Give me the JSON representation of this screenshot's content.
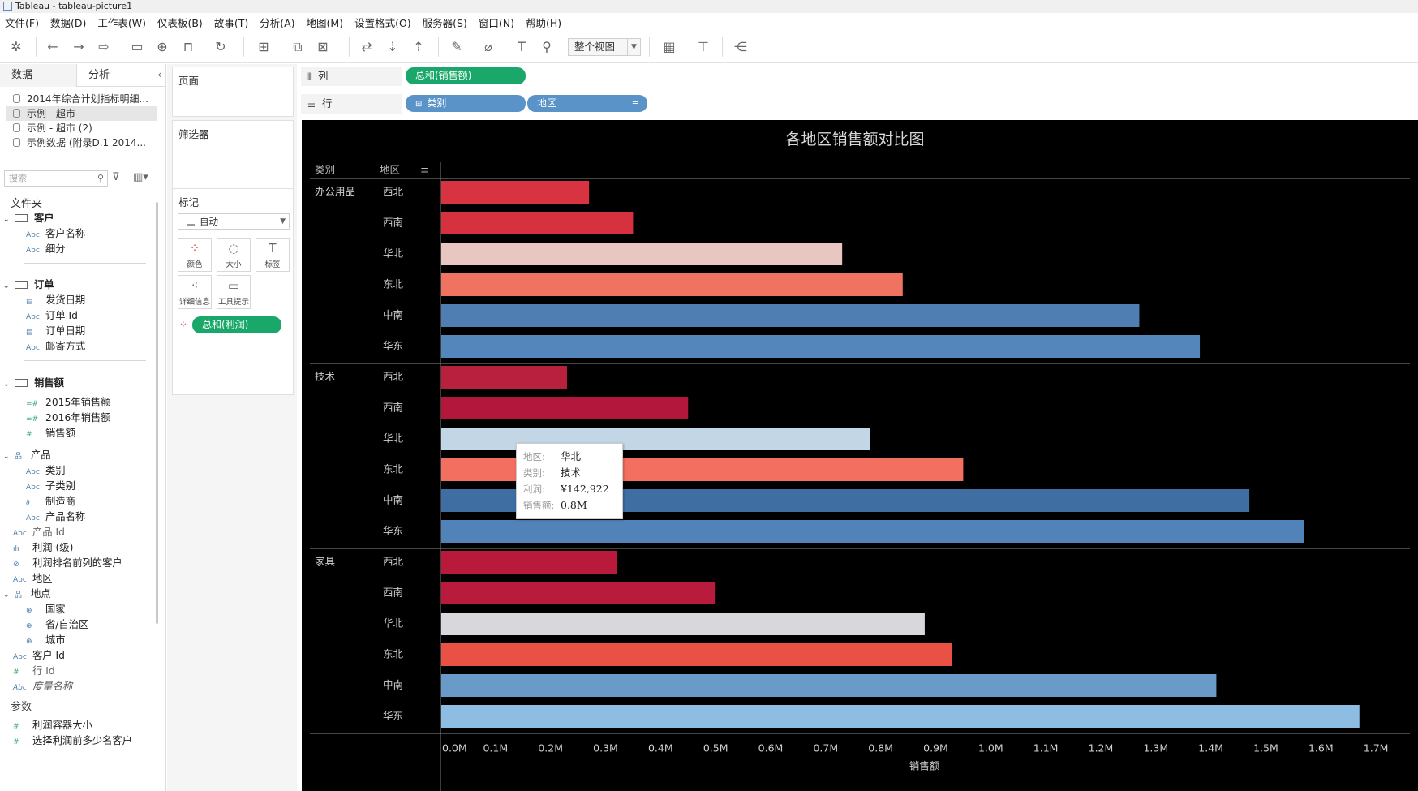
{
  "window": {
    "title": "Tableau - tableau-picture1"
  },
  "menu": [
    "文件(F)",
    "数据(D)",
    "工作表(W)",
    "仪表板(B)",
    "故事(T)",
    "分析(A)",
    "地图(M)",
    "设置格式(O)",
    "服务器(S)",
    "窗口(N)",
    "帮助(H)"
  ],
  "toolbar": {
    "view_mode": "整个视图"
  },
  "left_panel": {
    "tabs": [
      "数据",
      "分析"
    ],
    "datasources": [
      "2014年综合计划指标明细...",
      "示例 - 超市",
      "示例 - 超市 (2)",
      "示例数据 (附录D.1 2014..."
    ],
    "selected_datasource_index": 1,
    "search_placeholder": "搜索",
    "folders_label": "文件夹",
    "tree": [
      {
        "label": "客户",
        "kind": "folder"
      },
      {
        "label": "客户名称",
        "kind": "abc"
      },
      {
        "label": "细分",
        "kind": "abc"
      },
      {
        "label": "订单",
        "kind": "folder"
      },
      {
        "label": "发货日期",
        "kind": "date"
      },
      {
        "label": "订单 Id",
        "kind": "abc"
      },
      {
        "label": "订单日期",
        "kind": "date"
      },
      {
        "label": "邮寄方式",
        "kind": "abc"
      },
      {
        "label": "销售额",
        "kind": "folder"
      },
      {
        "label": "2015年销售额",
        "kind": "calc"
      },
      {
        "label": "2016年销售额",
        "kind": "calc"
      },
      {
        "label": "销售额",
        "kind": "number"
      },
      {
        "label": "产品",
        "kind": "hierarchy"
      },
      {
        "label": "类别",
        "kind": "abc"
      },
      {
        "label": "子类别",
        "kind": "abc"
      },
      {
        "label": "制造商",
        "kind": "link"
      },
      {
        "label": "产品名称",
        "kind": "abc"
      },
      {
        "label": "产品 Id",
        "kind": "abc"
      },
      {
        "label": "利润 (级)",
        "kind": "bin"
      },
      {
        "label": "利润排名前列的客户",
        "kind": "set"
      },
      {
        "label": "地区",
        "kind": "abc"
      },
      {
        "label": "地点",
        "kind": "hierarchy"
      },
      {
        "label": "国家",
        "kind": "geo"
      },
      {
        "label": "省/自治区",
        "kind": "geo"
      },
      {
        "label": "城市",
        "kind": "geo"
      },
      {
        "label": "客户 Id",
        "kind": "abc"
      },
      {
        "label": "行 Id",
        "kind": "number"
      },
      {
        "label": "度量名称",
        "kind": "abc"
      }
    ],
    "params_label": "参数",
    "params": [
      "利润容器大小",
      "选择利润前多少名客户"
    ]
  },
  "cards": {
    "pages": "页面",
    "filters": "筛选器",
    "marks": "标记",
    "marks_type": "自动",
    "mark_buttons": [
      "颜色",
      "大小",
      "标签",
      "详细信息",
      "工具提示"
    ],
    "color_pill": "总和(利润)"
  },
  "shelves": {
    "columns_label": "列",
    "rows_label": "行",
    "columns_pills": [
      "总和(销售额)"
    ],
    "rows_pills": [
      "类别",
      "地区"
    ]
  },
  "tooltip": {
    "keys": [
      "地区:",
      "类别:",
      "利润:",
      "销售额:"
    ],
    "values": [
      "华北",
      "技术",
      "¥142,922",
      "0.8M"
    ]
  },
  "chart_data": {
    "type": "bar",
    "orientation": "horizontal",
    "title": "各地区销售额对比图",
    "row_headers": [
      "类别",
      "地区"
    ],
    "xlabel": "销售额",
    "xlim": [
      0,
      1.75
    ],
    "x_ticks": [
      "0.0M",
      "0.1M",
      "0.2M",
      "0.3M",
      "0.4M",
      "0.5M",
      "0.6M",
      "0.7M",
      "0.8M",
      "0.9M",
      "1.0M",
      "1.1M",
      "1.2M",
      "1.3M",
      "1.4M",
      "1.5M",
      "1.6M",
      "1.7M"
    ],
    "x_tick_values": [
      0,
      0.1,
      0.2,
      0.3,
      0.4,
      0.5,
      0.6,
      0.7,
      0.8,
      0.9,
      1.0,
      1.1,
      1.2,
      1.3,
      1.4,
      1.5,
      1.6,
      1.7
    ],
    "groups": [
      {
        "category": "办公用品",
        "regions": [
          "西北",
          "西南",
          "华北",
          "东北",
          "中南",
          "华东"
        ],
        "values": [
          0.27,
          0.35,
          0.73,
          0.84,
          1.27,
          1.38
        ],
        "colors": [
          "#d73340",
          "#d6313f",
          "#e8c7c3",
          "#f07361",
          "#4f7eb2",
          "#5586bb"
        ]
      },
      {
        "category": "技术",
        "regions": [
          "西北",
          "西南",
          "华北",
          "东北",
          "中南",
          "华东"
        ],
        "values": [
          0.23,
          0.45,
          0.78,
          0.95,
          1.47,
          1.57
        ],
        "colors": [
          "#b8203e",
          "#b3183c",
          "#c3d6e5",
          "#f36f5f",
          "#3f6ea3",
          "#5183b9"
        ]
      },
      {
        "category": "家具",
        "regions": [
          "西北",
          "西南",
          "华北",
          "东北",
          "中南",
          "华东"
        ],
        "values": [
          0.32,
          0.5,
          0.88,
          0.93,
          1.41,
          1.67
        ],
        "colors": [
          "#b91a3c",
          "#b91b3d",
          "#d8d8dc",
          "#ea5145",
          "#6a9ac8",
          "#8dbde2"
        ]
      }
    ],
    "grid": false,
    "legend": "none"
  }
}
